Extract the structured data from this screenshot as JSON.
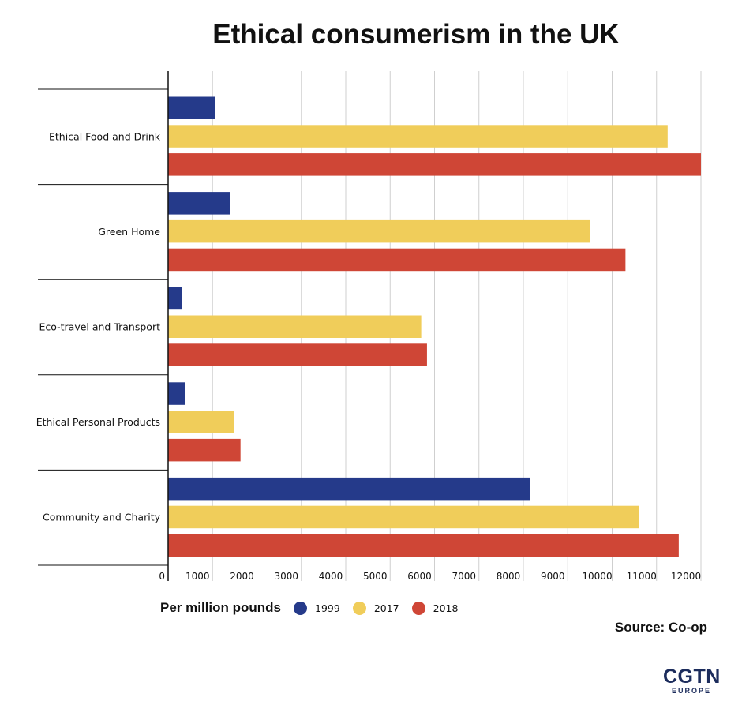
{
  "chart_data": {
    "type": "bar",
    "orientation": "horizontal",
    "title": "Ethical consumerism in the UK",
    "xlabel": "Per million pounds",
    "categories": [
      "Ethical Food and Drink",
      "Green Home",
      "Eco-travel and Transport",
      "Ethical Personal Products",
      "Community and Charity"
    ],
    "series": [
      {
        "name": "1999",
        "color": "#253a8a",
        "values": [
          1050,
          1400,
          320,
          380,
          8150
        ]
      },
      {
        "name": "2017",
        "color": "#f0cd5a",
        "values": [
          11250,
          9500,
          5700,
          1480,
          10600
        ]
      },
      {
        "name": "2018",
        "color": "#cf4636",
        "values": [
          12000,
          10300,
          5830,
          1630,
          11500
        ]
      }
    ],
    "xlim": [
      0,
      12000
    ],
    "ticks": [
      0,
      1000,
      2000,
      3000,
      4000,
      5000,
      6000,
      7000,
      8000,
      9000,
      10000,
      11000,
      12000
    ],
    "grid": true,
    "legend_position": "bottom-left"
  },
  "source": "Source: Co-op",
  "logo": {
    "main": "CGTN",
    "sub": "EUROPE"
  }
}
